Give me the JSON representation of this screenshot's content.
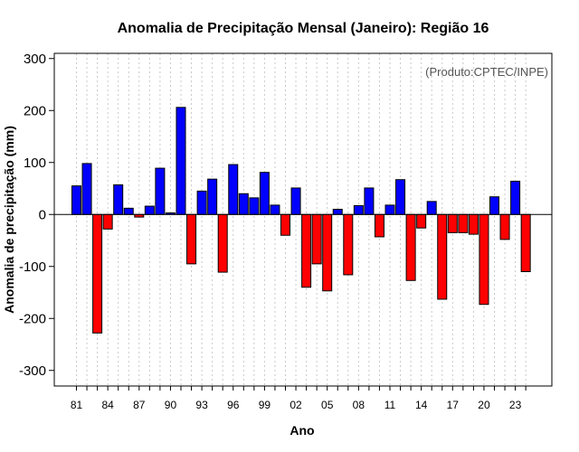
{
  "chart_data": {
    "type": "bar",
    "title": "Anomalia de Precipitação Mensal (Janeiro): Região 16",
    "xlabel": "Ano",
    "ylabel": "Anomalia de precipitação (mm)",
    "credit": "(Produto:CPTEC/INPE)",
    "ylim": [
      -330,
      310
    ],
    "yticks": [
      300,
      200,
      100,
      0,
      -100,
      -200,
      -300
    ],
    "ytick_labels": [
      "300",
      "200",
      "100",
      "0",
      "-100",
      "-200",
      "-300"
    ],
    "x": [
      1981,
      1982,
      1983,
      1984,
      1985,
      1986,
      1987,
      1988,
      1989,
      1990,
      1991,
      1992,
      1993,
      1994,
      1995,
      1996,
      1997,
      1998,
      1999,
      2000,
      2001,
      2002,
      2003,
      2004,
      2005,
      2006,
      2007,
      2008,
      2009,
      2010,
      2011,
      2012,
      2013,
      2014,
      2015,
      2016,
      2017,
      2018,
      2019,
      2020,
      2021,
      2022,
      2023,
      2024
    ],
    "values": [
      55,
      98,
      -228,
      -28,
      57,
      12,
      -5,
      16,
      89,
      3,
      206,
      -95,
      45,
      68,
      -111,
      96,
      40,
      32,
      81,
      18,
      -40,
      51,
      -140,
      -95,
      -147,
      10,
      -116,
      17,
      51,
      -43,
      18,
      67,
      -127,
      -26,
      25,
      -163,
      -35,
      -35,
      -38,
      -173,
      34,
      -48,
      64,
      -110
    ],
    "xtick_labels": [
      "81",
      "84",
      "87",
      "90",
      "93",
      "96",
      "99",
      "02",
      "05",
      "08",
      "11",
      "14",
      "17",
      "20",
      "23"
    ],
    "colors": {
      "positive": "#0000ff",
      "negative": "#ff0000",
      "grid": "#c8c8c8",
      "credit": "#555555"
    },
    "grid": true
  }
}
